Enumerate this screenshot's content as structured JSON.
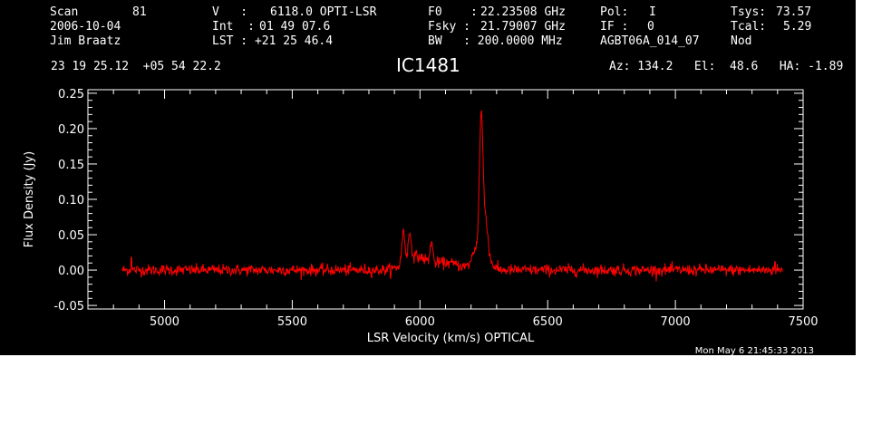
{
  "header": {
    "row1": [
      {
        "label": "Scan",
        "value": "81"
      },
      {
        "label": "V   :",
        "value": "6118.0 OPTI-LSR"
      },
      {
        "label": "F0    :",
        "value": "22.23508 GHz"
      },
      {
        "label": "Pol:",
        "value": "I"
      },
      {
        "label": "Tsys:",
        "value": "73.57"
      }
    ],
    "row2": [
      {
        "label": "2006-10-04",
        "value": ""
      },
      {
        "label": "Int  :",
        "value": "01 49 07.6"
      },
      {
        "label": "Fsky :",
        "value": "21.79007 GHz"
      },
      {
        "label": "IF :",
        "value": "0"
      },
      {
        "label": "Tcal:",
        "value": "5.29"
      }
    ],
    "row3": [
      {
        "label": "Jim Braatz",
        "value": ""
      },
      {
        "label": "LST : +21 25 46.4",
        "value": ""
      },
      {
        "label": "BW   : 200.0000 MHz",
        "value": ""
      },
      {
        "label": "AGBT06A_014_07",
        "value": ""
      },
      {
        "label": "Nod",
        "value": ""
      }
    ],
    "coords": "23 19 25.12  +05 54 22.2",
    "source": "IC1481",
    "pointing": "Az: 134.2   El:  48.6   HA: -1.89"
  },
  "timestamp": "Mon May  6 21:45:33 2013",
  "colors": {
    "background": "#000000",
    "foreground": "#ffffff",
    "spectrum": "#ff0000"
  },
  "chart_data": {
    "type": "line",
    "title": "IC1481",
    "xlabel": "LSR Velocity (km/s) OPTICAL",
    "ylabel": "Flux Density (Jy)",
    "xlim": [
      4700,
      7500
    ],
    "ylim": [
      -0.055,
      0.255
    ],
    "xticks": [
      5000,
      5500,
      6000,
      6500,
      7000,
      7500
    ],
    "yticks": [
      -0.05,
      0.0,
      0.05,
      0.1,
      0.15,
      0.2,
      0.25
    ],
    "ytick_labels": [
      "-0.05",
      "0.00",
      "0.05",
      "0.10",
      "0.15",
      "0.20",
      "0.25"
    ],
    "grid": false,
    "series": [
      {
        "color": "#ff0000",
        "x_range": [
          4835,
          7420
        ],
        "noise_rms": 0.004,
        "baseline": 0.0,
        "features": [
          {
            "center": 5935,
            "peak": 0.045,
            "width": 6
          },
          {
            "center": 5960,
            "peak": 0.035,
            "width": 6
          },
          {
            "center": 5980,
            "peak": 0.018,
            "width": 40
          },
          {
            "center": 6045,
            "peak": 0.03,
            "width": 5
          },
          {
            "center": 6100,
            "peak": 0.01,
            "width": 60
          },
          {
            "center": 6220,
            "peak": 0.03,
            "width": 15
          },
          {
            "center": 6240,
            "peak": 0.207,
            "width": 7
          },
          {
            "center": 6258,
            "peak": 0.06,
            "width": 8
          },
          {
            "center": 6272,
            "peak": 0.012,
            "width": 15
          }
        ],
        "spikes": [
          {
            "x": 4870,
            "y": 0.018
          },
          {
            "x": 6110,
            "y": 0.012
          },
          {
            "x": 7390,
            "y": 0.012
          }
        ]
      }
    ]
  }
}
